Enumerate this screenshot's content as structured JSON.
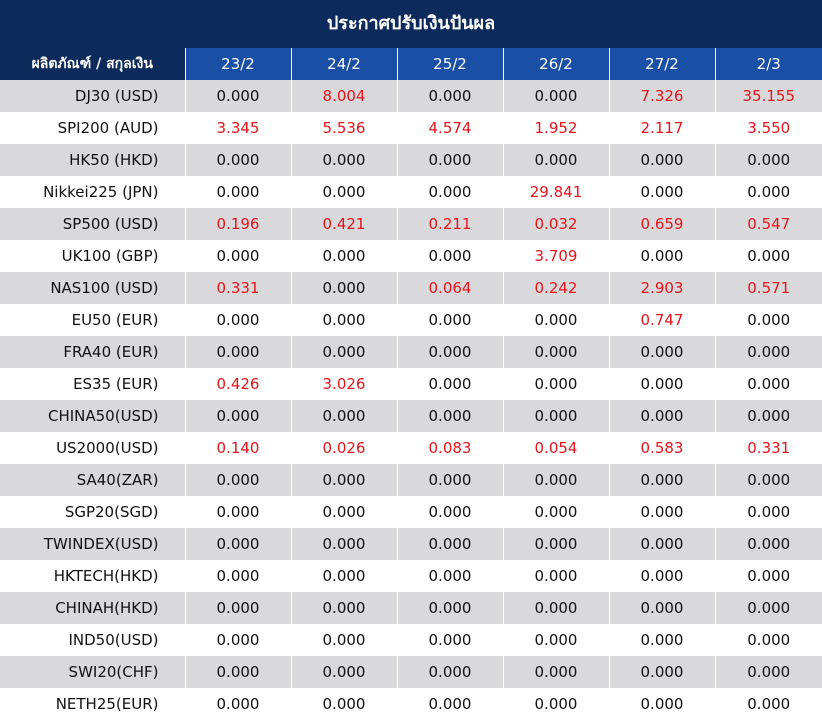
{
  "header": {
    "title": "ประกาศปรับเงินปันผล"
  },
  "table": {
    "columns": [
      "ผลิตภัณฑ์ / สกุลเงิน",
      "23/2",
      "24/2",
      "25/2",
      "26/2",
      "27/2",
      "2/3"
    ],
    "rows": [
      [
        "DJ30 (USD)",
        "0.000",
        "8.004",
        "0.000",
        "0.000",
        "7.326",
        "35.155"
      ],
      [
        "SPI200 (AUD)",
        "3.345",
        "5.536",
        "4.574",
        "1.952",
        "2.117",
        "3.550"
      ],
      [
        "HK50 (HKD)",
        "0.000",
        "0.000",
        "0.000",
        "0.000",
        "0.000",
        "0.000"
      ],
      [
        "Nikkei225 (JPN)",
        "0.000",
        "0.000",
        "0.000",
        "29.841",
        "0.000",
        "0.000"
      ],
      [
        "SP500 (USD)",
        "0.196",
        "0.421",
        "0.211",
        "0.032",
        "0.659",
        "0.547"
      ],
      [
        "UK100 (GBP)",
        "0.000",
        "0.000",
        "0.000",
        "3.709",
        "0.000",
        "0.000"
      ],
      [
        "NAS100 (USD)",
        "0.331",
        "0.000",
        "0.064",
        "0.242",
        "2.903",
        "0.571"
      ],
      [
        "EU50 (EUR)",
        "0.000",
        "0.000",
        "0.000",
        "0.000",
        "0.747",
        "0.000"
      ],
      [
        "FRA40 (EUR)",
        "0.000",
        "0.000",
        "0.000",
        "0.000",
        "0.000",
        "0.000"
      ],
      [
        "ES35 (EUR)",
        "0.426",
        "3.026",
        "0.000",
        "0.000",
        "0.000",
        "0.000"
      ],
      [
        "CHINA50(USD)",
        "0.000",
        "0.000",
        "0.000",
        "0.000",
        "0.000",
        "0.000"
      ],
      [
        "US2000(USD)",
        "0.140",
        "0.026",
        "0.083",
        "0.054",
        "0.583",
        "0.331"
      ],
      [
        "SA40(ZAR)",
        "0.000",
        "0.000",
        "0.000",
        "0.000",
        "0.000",
        "0.000"
      ],
      [
        "SGP20(SGD)",
        "0.000",
        "0.000",
        "0.000",
        "0.000",
        "0.000",
        "0.000"
      ],
      [
        "TWINDEX(USD)",
        "0.000",
        "0.000",
        "0.000",
        "0.000",
        "0.000",
        "0.000"
      ],
      [
        "HKTECH(HKD)",
        "0.000",
        "0.000",
        "0.000",
        "0.000",
        "0.000",
        "0.000"
      ],
      [
        "CHINAH(HKD)",
        "0.000",
        "0.000",
        "0.000",
        "0.000",
        "0.000",
        "0.000"
      ],
      [
        "IND50(USD)",
        "0.000",
        "0.000",
        "0.000",
        "0.000",
        "0.000",
        "0.000"
      ],
      [
        "SWI20(CHF)",
        "0.000",
        "0.000",
        "0.000",
        "0.000",
        "0.000",
        "0.000"
      ],
      [
        "NETH25(EUR)",
        "0.000",
        "0.000",
        "0.000",
        "0.000",
        "0.000",
        "0.000"
      ]
    ]
  }
}
